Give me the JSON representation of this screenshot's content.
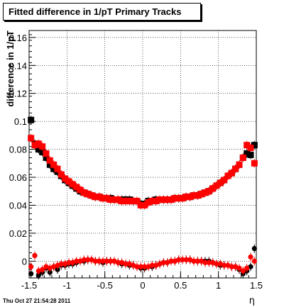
{
  "stamp": "Thu Oct 27 21:54:28 2011",
  "chart_data": {
    "type": "scatter",
    "title": "Fitted difference in 1/pT  Primary Tracks",
    "xlabel": "η",
    "ylabel": "difference in 1/pT",
    "xlim": [
      -1.5,
      1.5
    ],
    "ylim": [
      -0.012,
      0.165
    ],
    "xticks": [
      -1.5,
      -1,
      -0.5,
      0,
      0.5,
      1,
      1.5
    ],
    "xtick_labels": [
      "-1.5",
      "-1",
      "-0.5",
      "0",
      "0.5",
      "1",
      "1.5"
    ],
    "yticks": [
      0,
      0.02,
      0.04,
      0.06,
      0.08,
      0.1,
      0.12,
      0.14,
      0.16
    ],
    "ytick_labels": [
      "0",
      "0.02",
      "0.04",
      "0.06",
      "0.08",
      "0.1",
      "0.12",
      "0.14",
      "0.16"
    ],
    "grid": true,
    "series": [
      {
        "color": "#000000",
        "marker": "square",
        "x": [
          -1.475,
          -1.425,
          -1.375,
          -1.325,
          -1.275,
          -1.225,
          -1.175,
          -1.125,
          -1.075,
          -1.025,
          -0.975,
          -0.925,
          -0.875,
          -0.825,
          -0.775,
          -0.725,
          -0.675,
          -0.625,
          -0.575,
          -0.525,
          -0.475,
          -0.425,
          -0.375,
          -0.325,
          -0.275,
          -0.225,
          -0.175,
          -0.125,
          -0.075,
          -0.025,
          0.025,
          0.075,
          0.125,
          0.175,
          0.225,
          0.275,
          0.325,
          0.375,
          0.425,
          0.475,
          0.525,
          0.575,
          0.625,
          0.675,
          0.725,
          0.775,
          0.825,
          0.875,
          0.925,
          0.975,
          1.025,
          1.075,
          1.125,
          1.175,
          1.225,
          1.275,
          1.325,
          1.375,
          1.425,
          1.475
        ],
        "y": [
          0.101,
          0.084,
          0.08,
          0.078,
          0.074,
          0.069,
          0.066,
          0.064,
          0.061,
          0.058,
          0.056,
          0.054,
          0.052,
          0.05,
          0.049,
          0.048,
          0.047,
          0.046,
          0.046,
          0.045,
          0.045,
          0.045,
          0.044,
          0.044,
          0.044,
          0.044,
          0.044,
          0.043,
          0.043,
          0.041,
          0.041,
          0.043,
          0.043,
          0.044,
          0.044,
          0.044,
          0.044,
          0.044,
          0.045,
          0.045,
          0.045,
          0.046,
          0.046,
          0.047,
          0.047,
          0.048,
          0.049,
          0.05,
          0.052,
          0.054,
          0.056,
          0.058,
          0.061,
          0.063,
          0.066,
          0.069,
          0.074,
          0.077,
          0.076,
          0.083
        ]
      },
      {
        "color": "#ff0000",
        "marker": "square",
        "x": [
          -1.475,
          -1.425,
          -1.375,
          -1.325,
          -1.275,
          -1.225,
          -1.175,
          -1.125,
          -1.075,
          -1.025,
          -0.975,
          -0.925,
          -0.875,
          -0.825,
          -0.775,
          -0.725,
          -0.675,
          -0.625,
          -0.575,
          -0.525,
          -0.475,
          -0.425,
          -0.375,
          -0.325,
          -0.275,
          -0.225,
          -0.175,
          -0.125,
          -0.075,
          -0.025,
          0.025,
          0.075,
          0.125,
          0.175,
          0.225,
          0.275,
          0.325,
          0.375,
          0.425,
          0.475,
          0.525,
          0.575,
          0.625,
          0.675,
          0.725,
          0.775,
          0.825,
          0.875,
          0.925,
          0.975,
          1.025,
          1.075,
          1.125,
          1.175,
          1.225,
          1.275,
          1.325,
          1.375,
          1.425,
          1.475
        ],
        "y": [
          0.088,
          0.083,
          0.084,
          0.082,
          0.077,
          0.072,
          0.069,
          0.066,
          0.062,
          0.059,
          0.057,
          0.055,
          0.053,
          0.051,
          0.049,
          0.048,
          0.047,
          0.046,
          0.046,
          0.045,
          0.045,
          0.044,
          0.044,
          0.044,
          0.043,
          0.043,
          0.043,
          0.043,
          0.043,
          0.04,
          0.04,
          0.042,
          0.043,
          0.043,
          0.044,
          0.044,
          0.044,
          0.044,
          0.045,
          0.045,
          0.045,
          0.046,
          0.046,
          0.047,
          0.047,
          0.048,
          0.049,
          0.05,
          0.052,
          0.054,
          0.056,
          0.058,
          0.061,
          0.063,
          0.066,
          0.069,
          0.074,
          0.083,
          0.081,
          0.07
        ]
      },
      {
        "color": "#000000",
        "marker": "circle",
        "x": [
          -1.475,
          -1.425,
          -1.375,
          -1.325,
          -1.275,
          -1.225,
          -1.175,
          -1.125,
          -1.075,
          -1.025,
          -0.975,
          -0.925,
          -0.875,
          -0.825,
          -0.775,
          -0.725,
          -0.675,
          -0.625,
          -0.575,
          -0.525,
          -0.475,
          -0.425,
          -0.375,
          -0.325,
          -0.275,
          -0.225,
          -0.175,
          -0.125,
          -0.075,
          -0.025,
          0.025,
          0.075,
          0.125,
          0.175,
          0.225,
          0.275,
          0.325,
          0.375,
          0.425,
          0.475,
          0.525,
          0.575,
          0.625,
          0.675,
          0.725,
          0.775,
          0.825,
          0.875,
          0.925,
          0.975,
          1.025,
          1.075,
          1.125,
          1.175,
          1.225,
          1.275,
          1.325,
          1.375,
          1.425,
          1.475
        ],
        "y": [
          -0.009,
          0.004,
          -0.01,
          -0.008,
          -0.005,
          -0.008,
          -0.004,
          -0.006,
          -0.003,
          -0.003,
          -0.002,
          -0.002,
          -0.001,
          0.0,
          0.0,
          0.001,
          0.001,
          0.0,
          0.0,
          -0.001,
          0.0,
          0.0,
          0.0,
          -0.001,
          -0.002,
          -0.002,
          -0.003,
          -0.003,
          -0.004,
          -0.005,
          -0.005,
          -0.004,
          -0.004,
          -0.003,
          -0.002,
          -0.001,
          -0.001,
          0.0,
          0.0,
          0.001,
          0.001,
          0.001,
          0.001,
          0.0,
          0.0,
          0.0,
          0.0,
          0.0,
          -0.001,
          -0.002,
          -0.003,
          -0.003,
          -0.003,
          -0.004,
          -0.004,
          -0.006,
          -0.009,
          -0.007,
          -0.004,
          0.009
        ]
      },
      {
        "color": "#ff0000",
        "marker": "circle",
        "x": [
          -1.475,
          -1.425,
          -1.375,
          -1.325,
          -1.275,
          -1.225,
          -1.175,
          -1.125,
          -1.075,
          -1.025,
          -0.975,
          -0.925,
          -0.875,
          -0.825,
          -0.775,
          -0.725,
          -0.675,
          -0.625,
          -0.575,
          -0.525,
          -0.475,
          -0.425,
          -0.375,
          -0.325,
          -0.275,
          -0.225,
          -0.175,
          -0.125,
          -0.075,
          -0.025,
          0.025,
          0.075,
          0.125,
          0.175,
          0.225,
          0.275,
          0.325,
          0.375,
          0.425,
          0.475,
          0.525,
          0.575,
          0.625,
          0.675,
          0.725,
          0.775,
          0.825,
          0.875,
          0.925,
          0.975,
          1.025,
          1.075,
          1.125,
          1.175,
          1.225,
          1.275,
          1.325,
          1.375,
          1.425,
          1.475
        ],
        "y": [
          -0.004,
          0.004,
          -0.007,
          -0.006,
          -0.004,
          -0.005,
          -0.004,
          -0.003,
          -0.002,
          -0.002,
          -0.001,
          -0.001,
          0.0,
          0.0,
          0.001,
          0.001,
          0.001,
          0.0,
          0.0,
          0.0,
          0.0,
          0.0,
          0.0,
          -0.001,
          -0.001,
          -0.002,
          -0.002,
          -0.003,
          -0.004,
          -0.004,
          -0.004,
          -0.004,
          -0.003,
          -0.003,
          -0.002,
          -0.001,
          -0.001,
          0.0,
          0.0,
          0.001,
          0.001,
          0.001,
          0.001,
          0.0,
          0.0,
          0.0,
          -0.001,
          -0.001,
          -0.001,
          -0.002,
          -0.002,
          -0.003,
          -0.003,
          -0.004,
          -0.004,
          -0.005,
          -0.007,
          -0.005,
          0.003,
          0.0
        ]
      }
    ]
  }
}
